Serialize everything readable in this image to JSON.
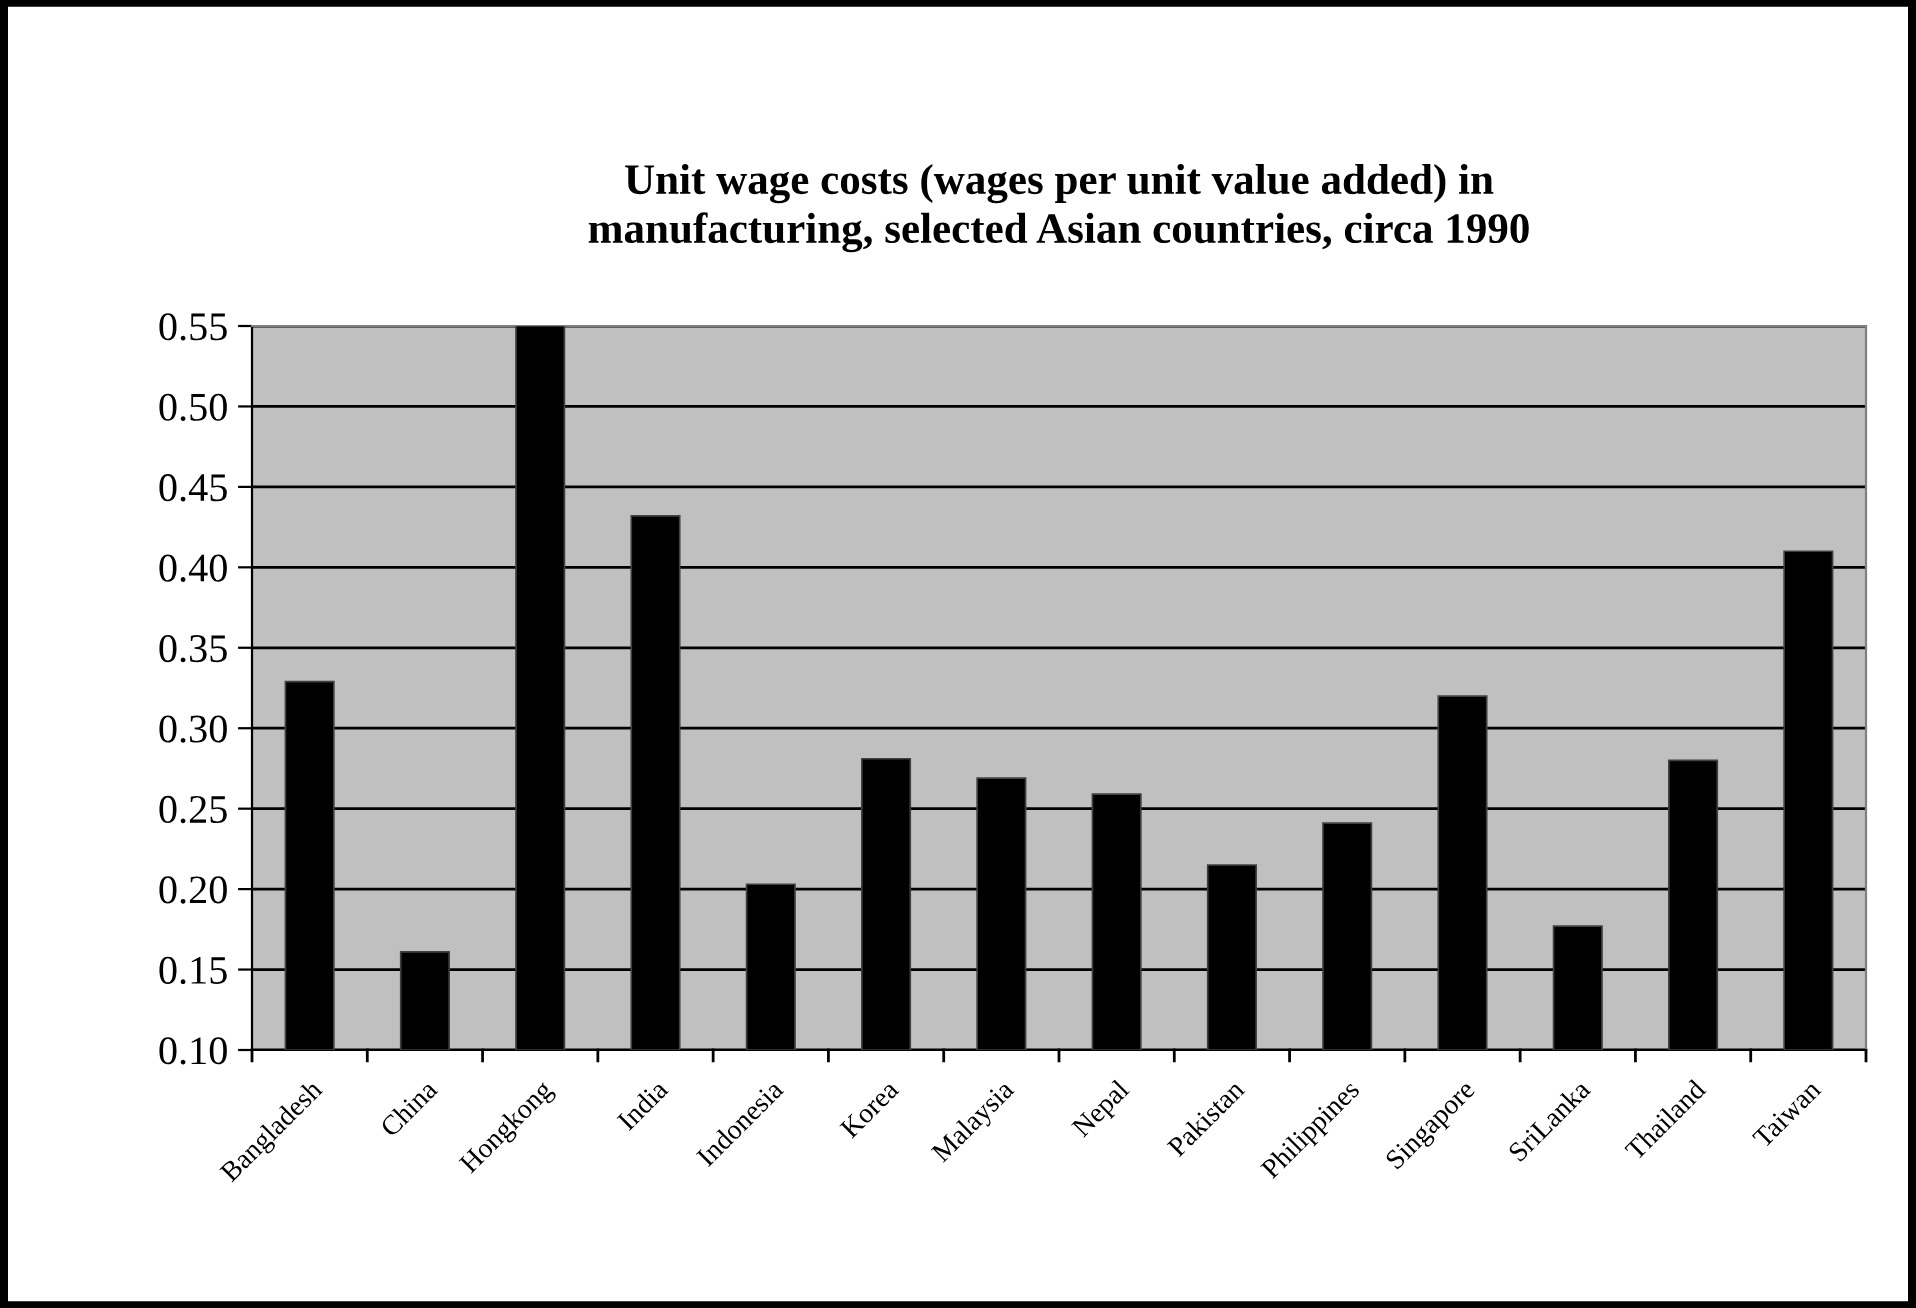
{
  "chart_data": {
    "type": "bar",
    "title": "Unit wage costs (wages per unit value added) in\nmanufacturing, selected Asian countries, circa 1990",
    "categories": [
      "Bangladesh",
      "China",
      "Hongkong",
      "India",
      "Indonesia",
      "Korea",
      "Malaysia",
      "Nepal",
      "Pakistan",
      "Philippines",
      "Singapore",
      "SriLanka",
      "Thailand",
      "Taiwan"
    ],
    "values": [
      0.329,
      0.161,
      0.55,
      0.432,
      0.203,
      0.281,
      0.269,
      0.259,
      0.215,
      0.241,
      0.32,
      0.177,
      0.28,
      0.41
    ],
    "color": "#000000",
    "ylim": [
      0.1,
      0.55
    ],
    "yticks": [
      {
        "value": 0.1,
        "label": "0.10"
      },
      {
        "value": 0.15,
        "label": "0.15"
      },
      {
        "value": 0.2,
        "label": "0.20"
      },
      {
        "value": 0.25,
        "label": "0.25"
      },
      {
        "value": 0.3,
        "label": "0.30"
      },
      {
        "value": 0.35,
        "label": "0.35"
      },
      {
        "value": 0.4,
        "label": "0.40"
      },
      {
        "value": 0.45,
        "label": "0.45"
      },
      {
        "value": 0.5,
        "label": "0.50"
      },
      {
        "value": 0.55,
        "label": "0.55"
      }
    ],
    "grid": "y"
  }
}
